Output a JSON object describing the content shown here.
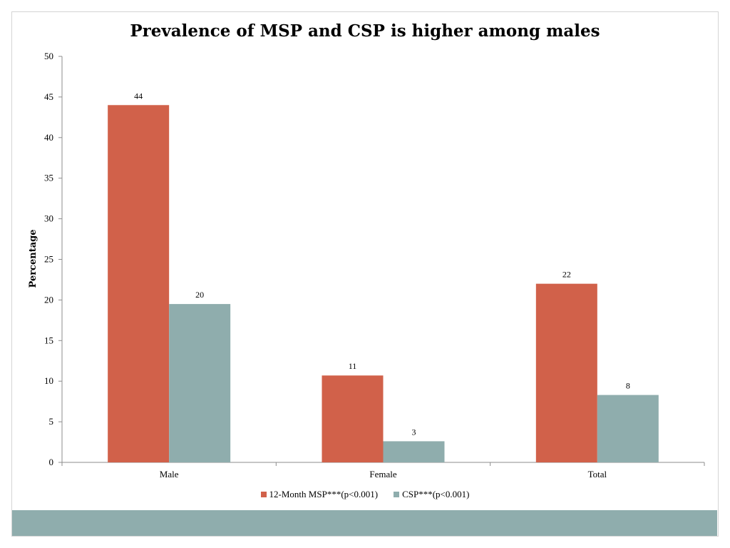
{
  "chart_data": {
    "type": "bar",
    "title": "Prevalence of MSP and CSP is higher among males",
    "xlabel": "",
    "ylabel": "Percentage",
    "ylim": [
      0,
      50
    ],
    "yticks": [
      "0",
      "5",
      "10",
      "15",
      "20",
      "25",
      "30",
      "35",
      "40",
      "45",
      "50"
    ],
    "categories": [
      "Male",
      "Female",
      "Total"
    ],
    "series": [
      {
        "name": "12-Month MSP***(p<0.001)",
        "values": [
          44,
          10.7,
          22
        ],
        "labels": [
          "44",
          "11",
          "22"
        ],
        "color": "#d1614a"
      },
      {
        "name": "CSP***(p<0.001)",
        "values": [
          19.5,
          2.6,
          8.3
        ],
        "labels": [
          "20",
          "3",
          "8"
        ],
        "color": "#8fadad"
      }
    ],
    "legend": "bottom",
    "grid": false
  },
  "theme": {
    "footer_color": "#8fadad"
  }
}
